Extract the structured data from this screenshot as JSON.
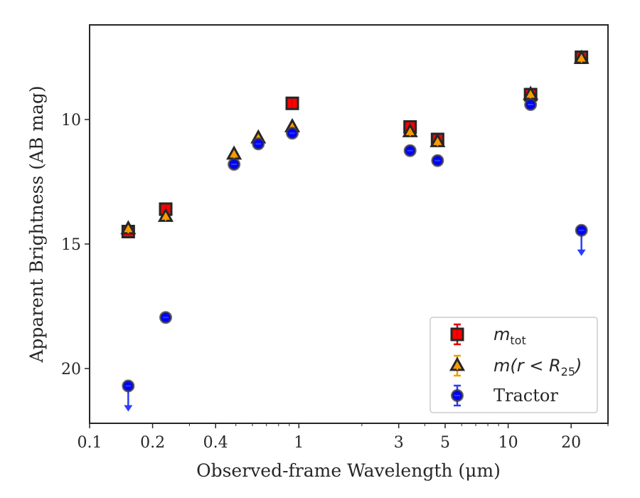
{
  "chart_data": {
    "type": "scatter",
    "x_scale": "log",
    "y_inverted": true,
    "xlim": [
      0.1,
      30
    ],
    "ylim": [
      22.2,
      6.2
    ],
    "xlabel": "Observed-frame Wavelength (μm)",
    "ylabel": "Apparent Brightness (AB mag)",
    "x_tick_labels": [
      "0.1",
      "0.2",
      "0.4",
      "1",
      "3",
      "5",
      "10",
      "20"
    ],
    "x_ticks": [
      0.1,
      0.2,
      0.4,
      1,
      3,
      5,
      10,
      20
    ],
    "y_ticks": [
      10,
      15,
      20
    ],
    "y_tick_labels": [
      "10",
      "15",
      "20"
    ],
    "legend_position": "lower-right",
    "series": [
      {
        "name": "m_tot",
        "label_main": "m",
        "label_sub": "tot",
        "marker": "square",
        "color": "#ff0000",
        "edge": "#262626",
        "error_color": "#e00000",
        "x": [
          0.153,
          0.231,
          0.93,
          3.4,
          4.6,
          12.8,
          22.4
        ],
        "y": [
          14.5,
          13.6,
          9.35,
          10.3,
          10.8,
          9.0,
          7.5
        ]
      },
      {
        "name": "m(r < R25)",
        "label_main": "m(r < R",
        "label_sub": "25",
        "label_end": ")",
        "marker": "triangle",
        "color": "#ff9900",
        "edge": "#262626",
        "error_color": "#f0a000",
        "x": [
          0.153,
          0.231,
          0.49,
          0.64,
          0.93,
          3.4,
          4.6,
          12.8,
          22.4
        ],
        "y": [
          14.4,
          13.9,
          11.4,
          10.75,
          10.3,
          10.5,
          10.9,
          9.0,
          7.55
        ]
      },
      {
        "name": "Tractor",
        "marker": "circle",
        "color": "#0000ff",
        "edge": "#3a3a3a",
        "error_color": "#2a3cff",
        "x": [
          0.153,
          0.231,
          0.49,
          0.64,
          0.93,
          3.4,
          4.6,
          12.8,
          22.4
        ],
        "y": [
          20.7,
          17.95,
          11.8,
          10.98,
          10.55,
          11.25,
          11.65,
          9.4,
          14.45
        ],
        "upper_limits": [
          true,
          false,
          false,
          false,
          false,
          false,
          false,
          false,
          true
        ]
      }
    ]
  }
}
